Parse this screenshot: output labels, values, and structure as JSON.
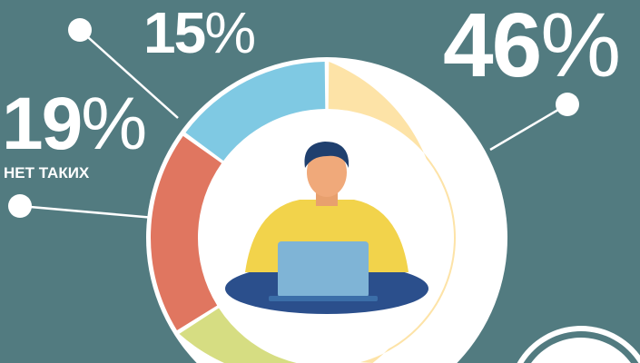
{
  "chart_data": {
    "type": "pie",
    "variant": "donut",
    "slices": [
      {
        "value": 46,
        "label": "46%",
        "color": "#fde3a7"
      },
      {
        "value": 20,
        "label": "",
        "color": "#d6dd82"
      },
      {
        "value": 19,
        "label": "19%",
        "caption": "НЕТ ТАКИХ",
        "color": "#e07660"
      },
      {
        "value": 15,
        "label": "15%",
        "color": "#7fc9e3"
      }
    ],
    "background": "#527b80"
  },
  "labels": {
    "p46": "46",
    "p15": "15",
    "p19": "19",
    "sign": "%",
    "caption19": "НЕТ ТАКИХ"
  }
}
